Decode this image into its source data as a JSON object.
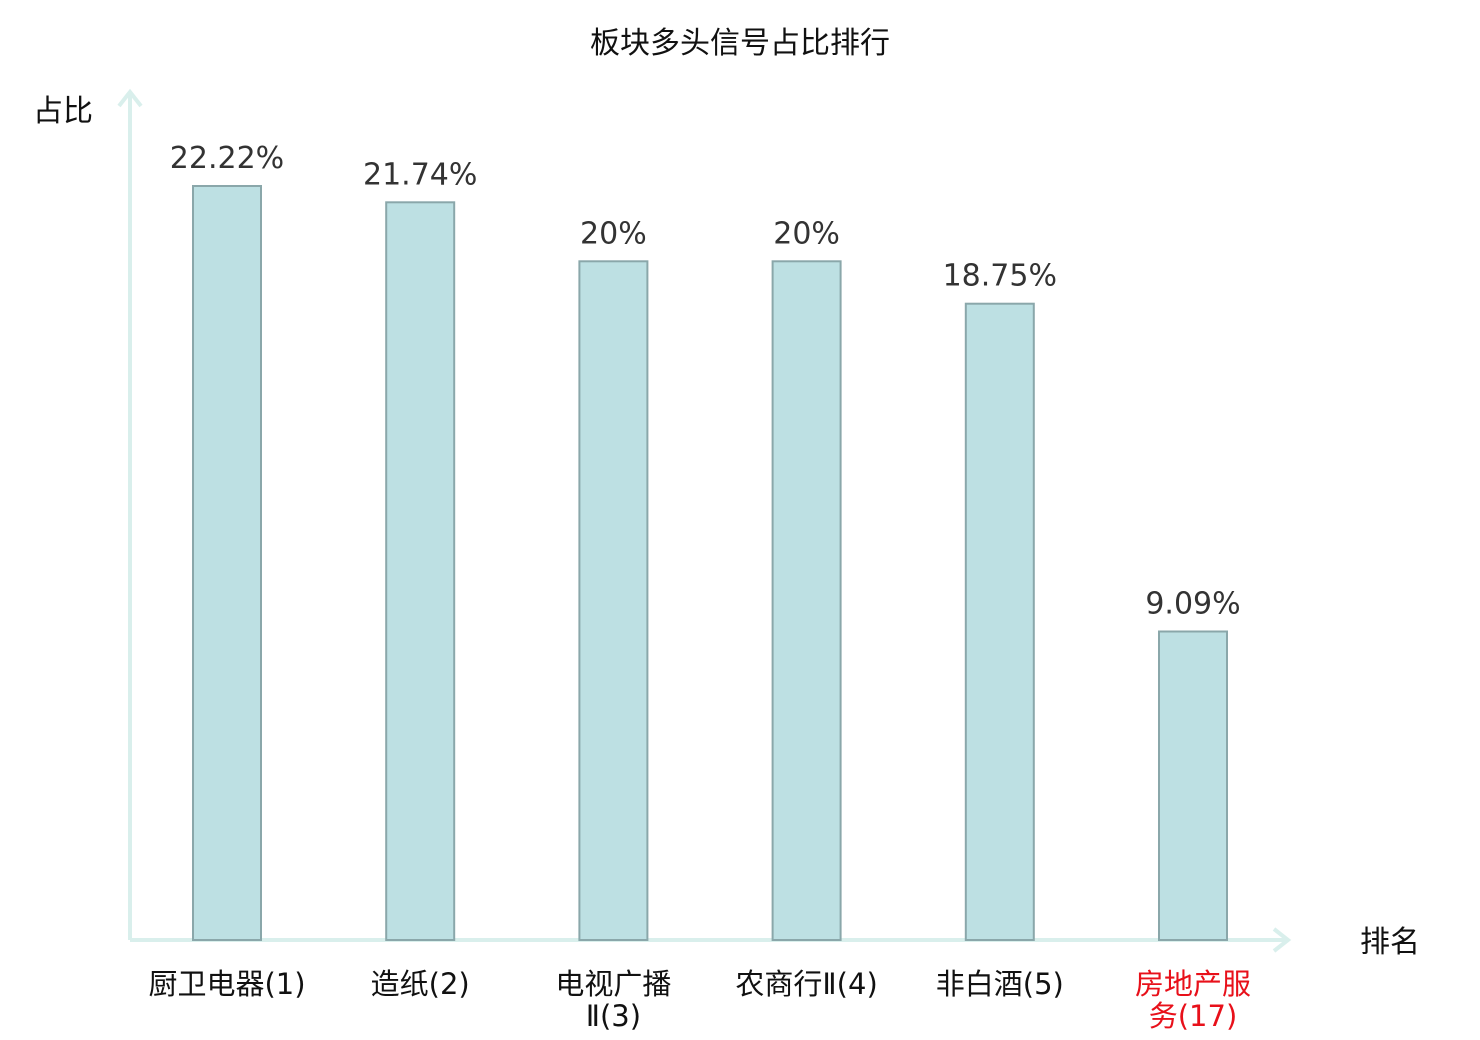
{
  "chart_data": {
    "type": "bar",
    "title": "板块多头信号占比排行",
    "ylabel": "占比",
    "xlabel": "排名",
    "ylim": [
      0,
      25
    ],
    "grid": false,
    "categories": [
      {
        "name_lines": [
          "厨卫电器",
          "(1)"
        ],
        "highlight": false
      },
      {
        "name_lines": [
          "造纸",
          "(2)"
        ],
        "highlight": false
      },
      {
        "name_lines": [
          "电视广播",
          "Ⅱ(3)"
        ],
        "highlight": false
      },
      {
        "name_lines": [
          "农商行Ⅱ",
          "(4)"
        ],
        "highlight": false
      },
      {
        "name_lines": [
          "非白酒",
          "(5)"
        ],
        "highlight": false
      },
      {
        "name_lines": [
          "房地产服",
          "务(17)"
        ],
        "highlight": true
      }
    ],
    "category_lines": [
      [
        "厨卫电器(1)"
      ],
      [
        "造纸(2)"
      ],
      [
        "电视广播",
        "Ⅱ(3)"
      ],
      [
        "农商行Ⅱ(4)"
      ],
      [
        "非白酒(5)"
      ],
      [
        "房地产服",
        "务(17)"
      ]
    ],
    "values": [
      22.22,
      21.74,
      20,
      20,
      18.75,
      9.09
    ],
    "value_labels": [
      "22.22%",
      "21.74%",
      "20%",
      "20%",
      "18.75%",
      "9.09%"
    ],
    "colors": {
      "bar_fill": "#bde0e3",
      "bar_stroke": "#8aa7aa",
      "axis": "#d9efec",
      "tick_text": "#111111",
      "highlight_text": "#e8101a"
    }
  }
}
